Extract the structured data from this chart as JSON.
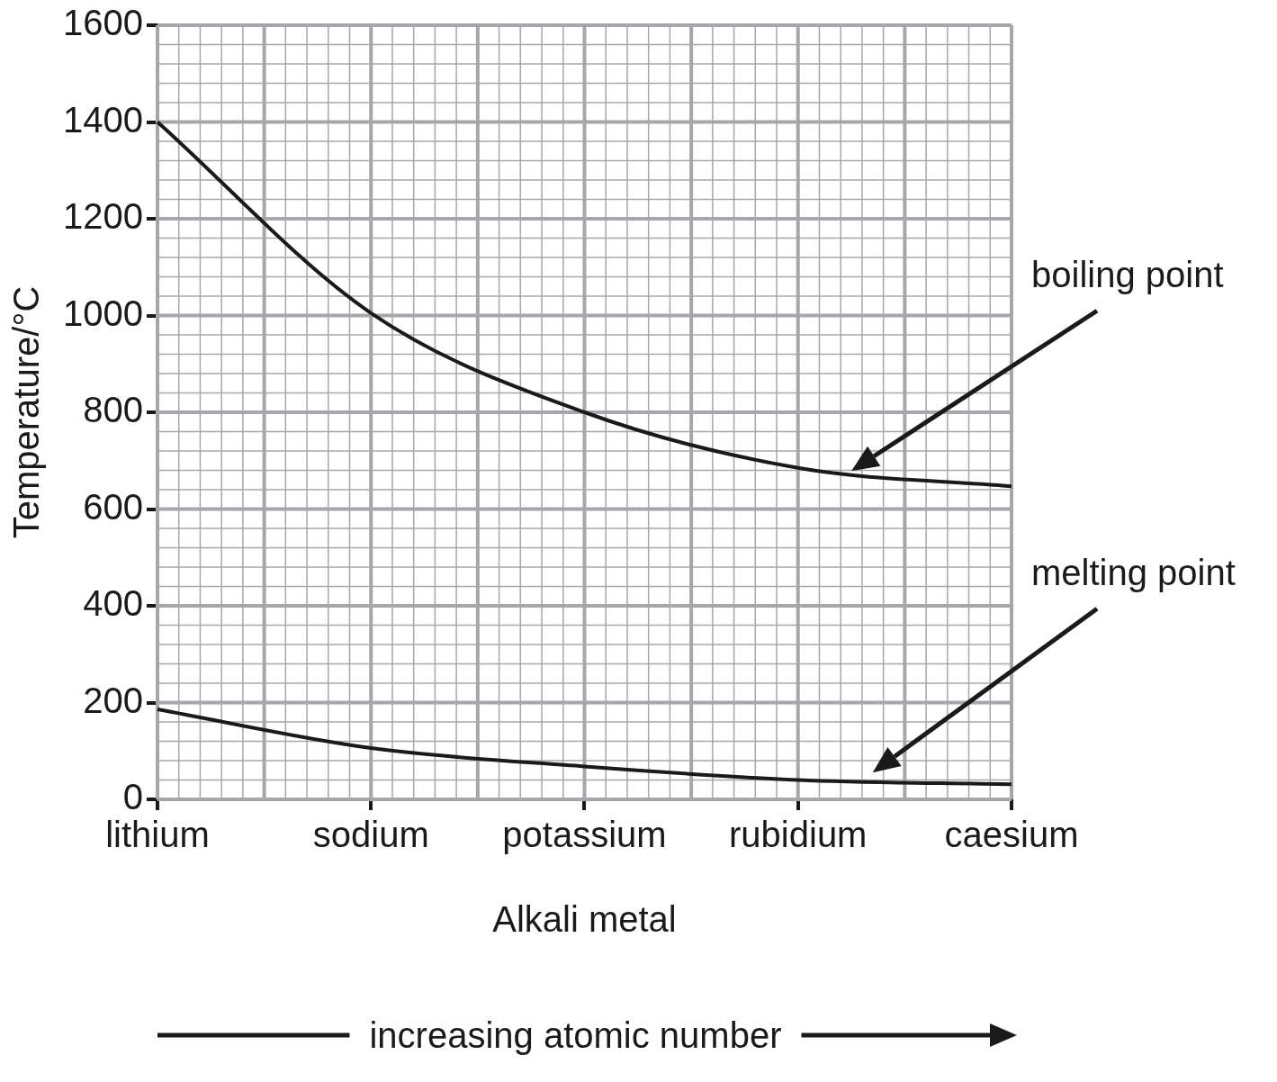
{
  "chart_data": {
    "type": "line",
    "xlabel": "Alkali metal",
    "ylabel": "Temperature/°C",
    "categories": [
      "lithium",
      "sodium",
      "potassium",
      "rubidium",
      "caesium"
    ],
    "series": [
      {
        "name": "boiling point",
        "color": "#1a1a1a",
        "values": [
          1400,
          1005,
          800,
          685,
          647
        ]
      },
      {
        "name": "melting point",
        "color": "#1a1a1a",
        "values": [
          186,
          106,
          68,
          40,
          31
        ]
      }
    ],
    "ylim": [
      0,
      1600
    ],
    "yticks": [
      0,
      200,
      400,
      600,
      800,
      1000,
      1200,
      1400,
      1600
    ],
    "grid": true,
    "legend": false,
    "marker": "none",
    "line_style": "solid",
    "annotations": [
      "increasing atomic number"
    ]
  }
}
